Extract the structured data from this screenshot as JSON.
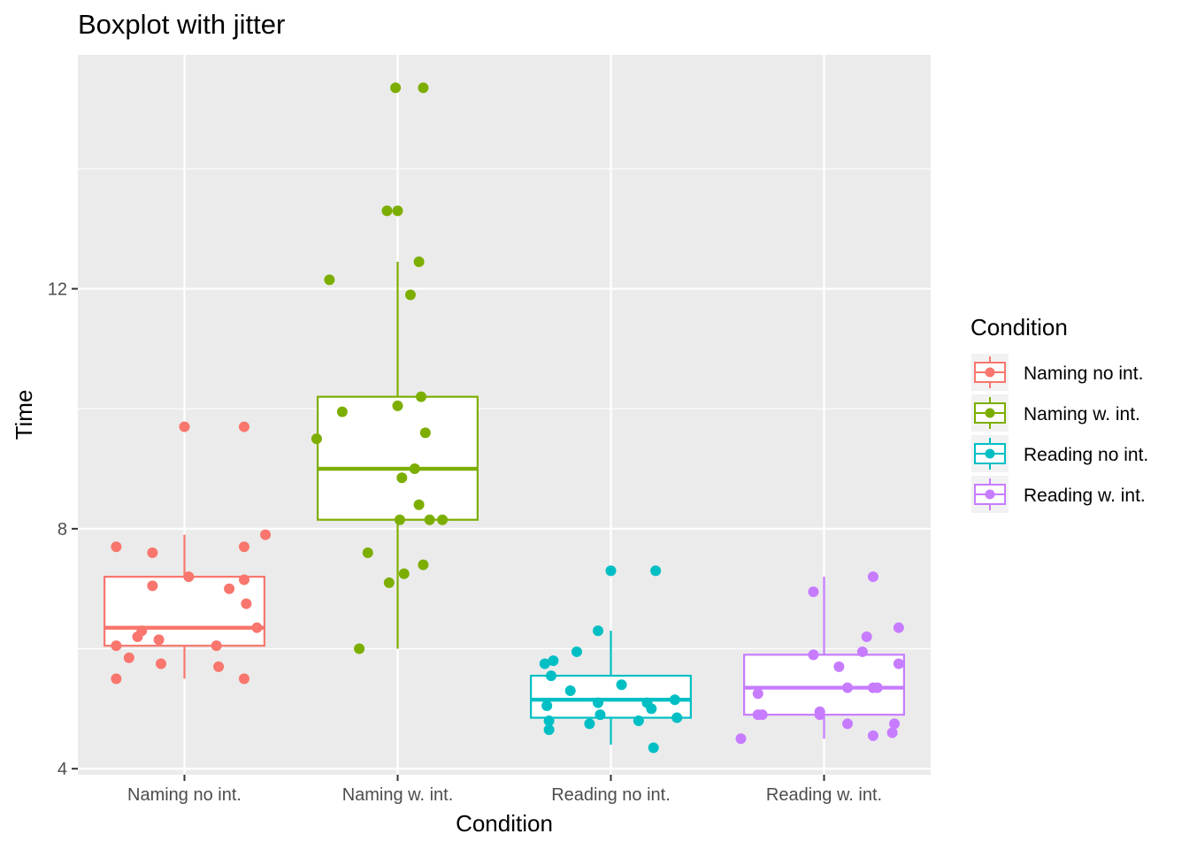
{
  "chart_data": {
    "type": "boxplot",
    "title": "Boxplot with jitter",
    "xlabel": "Condition",
    "ylabel": "Time",
    "ylim": [
      3.9,
      15.9
    ],
    "yticks": [
      4,
      8,
      12
    ],
    "grid": true,
    "legend": {
      "title": "Condition",
      "position": "right"
    },
    "categories": [
      "Naming no int.",
      "Naming w. int.",
      "Reading no int.",
      "Reading w. int."
    ],
    "series": [
      {
        "name": "Naming no int.",
        "color": "#F8766D",
        "box": {
          "lower_whisker": 5.5,
          "q1": 6.05,
          "median": 6.35,
          "q3": 7.2,
          "upper_whisker": 7.9
        },
        "points": [
          {
            "x": -0.32,
            "y": 5.5
          },
          {
            "x": -0.32,
            "y": 7.7
          },
          {
            "x": -0.32,
            "y": 6.05
          },
          {
            "x": -0.26,
            "y": 5.85
          },
          {
            "x": -0.22,
            "y": 6.2
          },
          {
            "x": -0.2,
            "y": 6.3
          },
          {
            "x": -0.15,
            "y": 7.05
          },
          {
            "x": -0.15,
            "y": 7.6
          },
          {
            "x": -0.12,
            "y": 6.15
          },
          {
            "x": -0.11,
            "y": 5.75
          },
          {
            "x": 0.0,
            "y": 9.7
          },
          {
            "x": 0.02,
            "y": 7.2
          },
          {
            "x": 0.15,
            "y": 6.05
          },
          {
            "x": 0.16,
            "y": 5.7
          },
          {
            "x": 0.21,
            "y": 7.0
          },
          {
            "x": 0.28,
            "y": 9.7
          },
          {
            "x": 0.28,
            "y": 7.7
          },
          {
            "x": 0.28,
            "y": 7.15
          },
          {
            "x": 0.29,
            "y": 6.75
          },
          {
            "x": 0.28,
            "y": 5.5
          },
          {
            "x": 0.34,
            "y": 6.35
          },
          {
            "x": 0.38,
            "y": 7.9
          }
        ]
      },
      {
        "name": "Naming w. int.",
        "color": "#7CAE00",
        "box": {
          "lower_whisker": 6.0,
          "q1": 8.15,
          "median": 9.0,
          "q3": 10.2,
          "upper_whisker": 12.45
        },
        "points": [
          {
            "x": -0.38,
            "y": 9.5
          },
          {
            "x": -0.32,
            "y": 12.15
          },
          {
            "x": -0.26,
            "y": 9.95
          },
          {
            "x": -0.18,
            "y": 6.0
          },
          {
            "x": -0.14,
            "y": 7.6
          },
          {
            "x": -0.05,
            "y": 13.3
          },
          {
            "x": -0.04,
            "y": 7.1
          },
          {
            "x": 0.0,
            "y": 13.3
          },
          {
            "x": -0.01,
            "y": 15.35
          },
          {
            "x": 0.0,
            "y": 10.05
          },
          {
            "x": 0.01,
            "y": 8.15
          },
          {
            "x": 0.02,
            "y": 8.85
          },
          {
            "x": 0.03,
            "y": 7.25
          },
          {
            "x": 0.06,
            "y": 11.9
          },
          {
            "x": 0.08,
            "y": 9.0
          },
          {
            "x": 0.1,
            "y": 8.4
          },
          {
            "x": 0.1,
            "y": 12.45
          },
          {
            "x": 0.11,
            "y": 10.2
          },
          {
            "x": 0.12,
            "y": 15.35
          },
          {
            "x": 0.12,
            "y": 7.4
          },
          {
            "x": 0.13,
            "y": 9.6
          },
          {
            "x": 0.15,
            "y": 8.15
          },
          {
            "x": 0.21,
            "y": 8.15
          }
        ]
      },
      {
        "name": "Reading no int.",
        "color": "#00BFC4",
        "box": {
          "lower_whisker": 4.4,
          "q1": 4.85,
          "median": 5.15,
          "q3": 5.55,
          "upper_whisker": 6.3
        },
        "points": [
          {
            "x": -0.31,
            "y": 5.75
          },
          {
            "x": -0.3,
            "y": 5.05
          },
          {
            "x": -0.29,
            "y": 4.8
          },
          {
            "x": -0.29,
            "y": 4.65
          },
          {
            "x": -0.28,
            "y": 5.55
          },
          {
            "x": -0.27,
            "y": 5.8
          },
          {
            "x": -0.19,
            "y": 5.3
          },
          {
            "x": -0.16,
            "y": 5.95
          },
          {
            "x": -0.1,
            "y": 4.75
          },
          {
            "x": -0.06,
            "y": 5.1
          },
          {
            "x": -0.06,
            "y": 6.3
          },
          {
            "x": -0.05,
            "y": 4.9
          },
          {
            "x": 0.0,
            "y": 7.3
          },
          {
            "x": 0.05,
            "y": 5.4
          },
          {
            "x": 0.13,
            "y": 4.8
          },
          {
            "x": 0.17,
            "y": 5.1
          },
          {
            "x": 0.19,
            "y": 5.0
          },
          {
            "x": 0.2,
            "y": 4.35
          },
          {
            "x": 0.21,
            "y": 7.3
          },
          {
            "x": 0.3,
            "y": 5.15
          },
          {
            "x": 0.31,
            "y": 4.85
          }
        ]
      },
      {
        "name": "Reading w. int.",
        "color": "#C77CFF",
        "box": {
          "lower_whisker": 4.5,
          "q1": 4.9,
          "median": 5.35,
          "q3": 5.9,
          "upper_whisker": 7.2
        },
        "points": [
          {
            "x": -0.39,
            "y": 4.5
          },
          {
            "x": -0.31,
            "y": 5.25
          },
          {
            "x": -0.31,
            "y": 4.9
          },
          {
            "x": -0.29,
            "y": 4.9
          },
          {
            "x": -0.05,
            "y": 6.95
          },
          {
            "x": -0.05,
            "y": 5.9
          },
          {
            "x": -0.02,
            "y": 4.95
          },
          {
            "x": -0.02,
            "y": 4.9
          },
          {
            "x": 0.07,
            "y": 5.7
          },
          {
            "x": 0.11,
            "y": 4.75
          },
          {
            "x": 0.11,
            "y": 5.35
          },
          {
            "x": 0.18,
            "y": 5.95
          },
          {
            "x": 0.2,
            "y": 6.2
          },
          {
            "x": 0.23,
            "y": 7.2
          },
          {
            "x": 0.23,
            "y": 5.35
          },
          {
            "x": 0.23,
            "y": 4.55
          },
          {
            "x": 0.25,
            "y": 5.35
          },
          {
            "x": 0.32,
            "y": 4.6
          },
          {
            "x": 0.33,
            "y": 4.75
          },
          {
            "x": 0.35,
            "y": 5.75
          },
          {
            "x": 0.35,
            "y": 6.35
          }
        ]
      }
    ]
  }
}
